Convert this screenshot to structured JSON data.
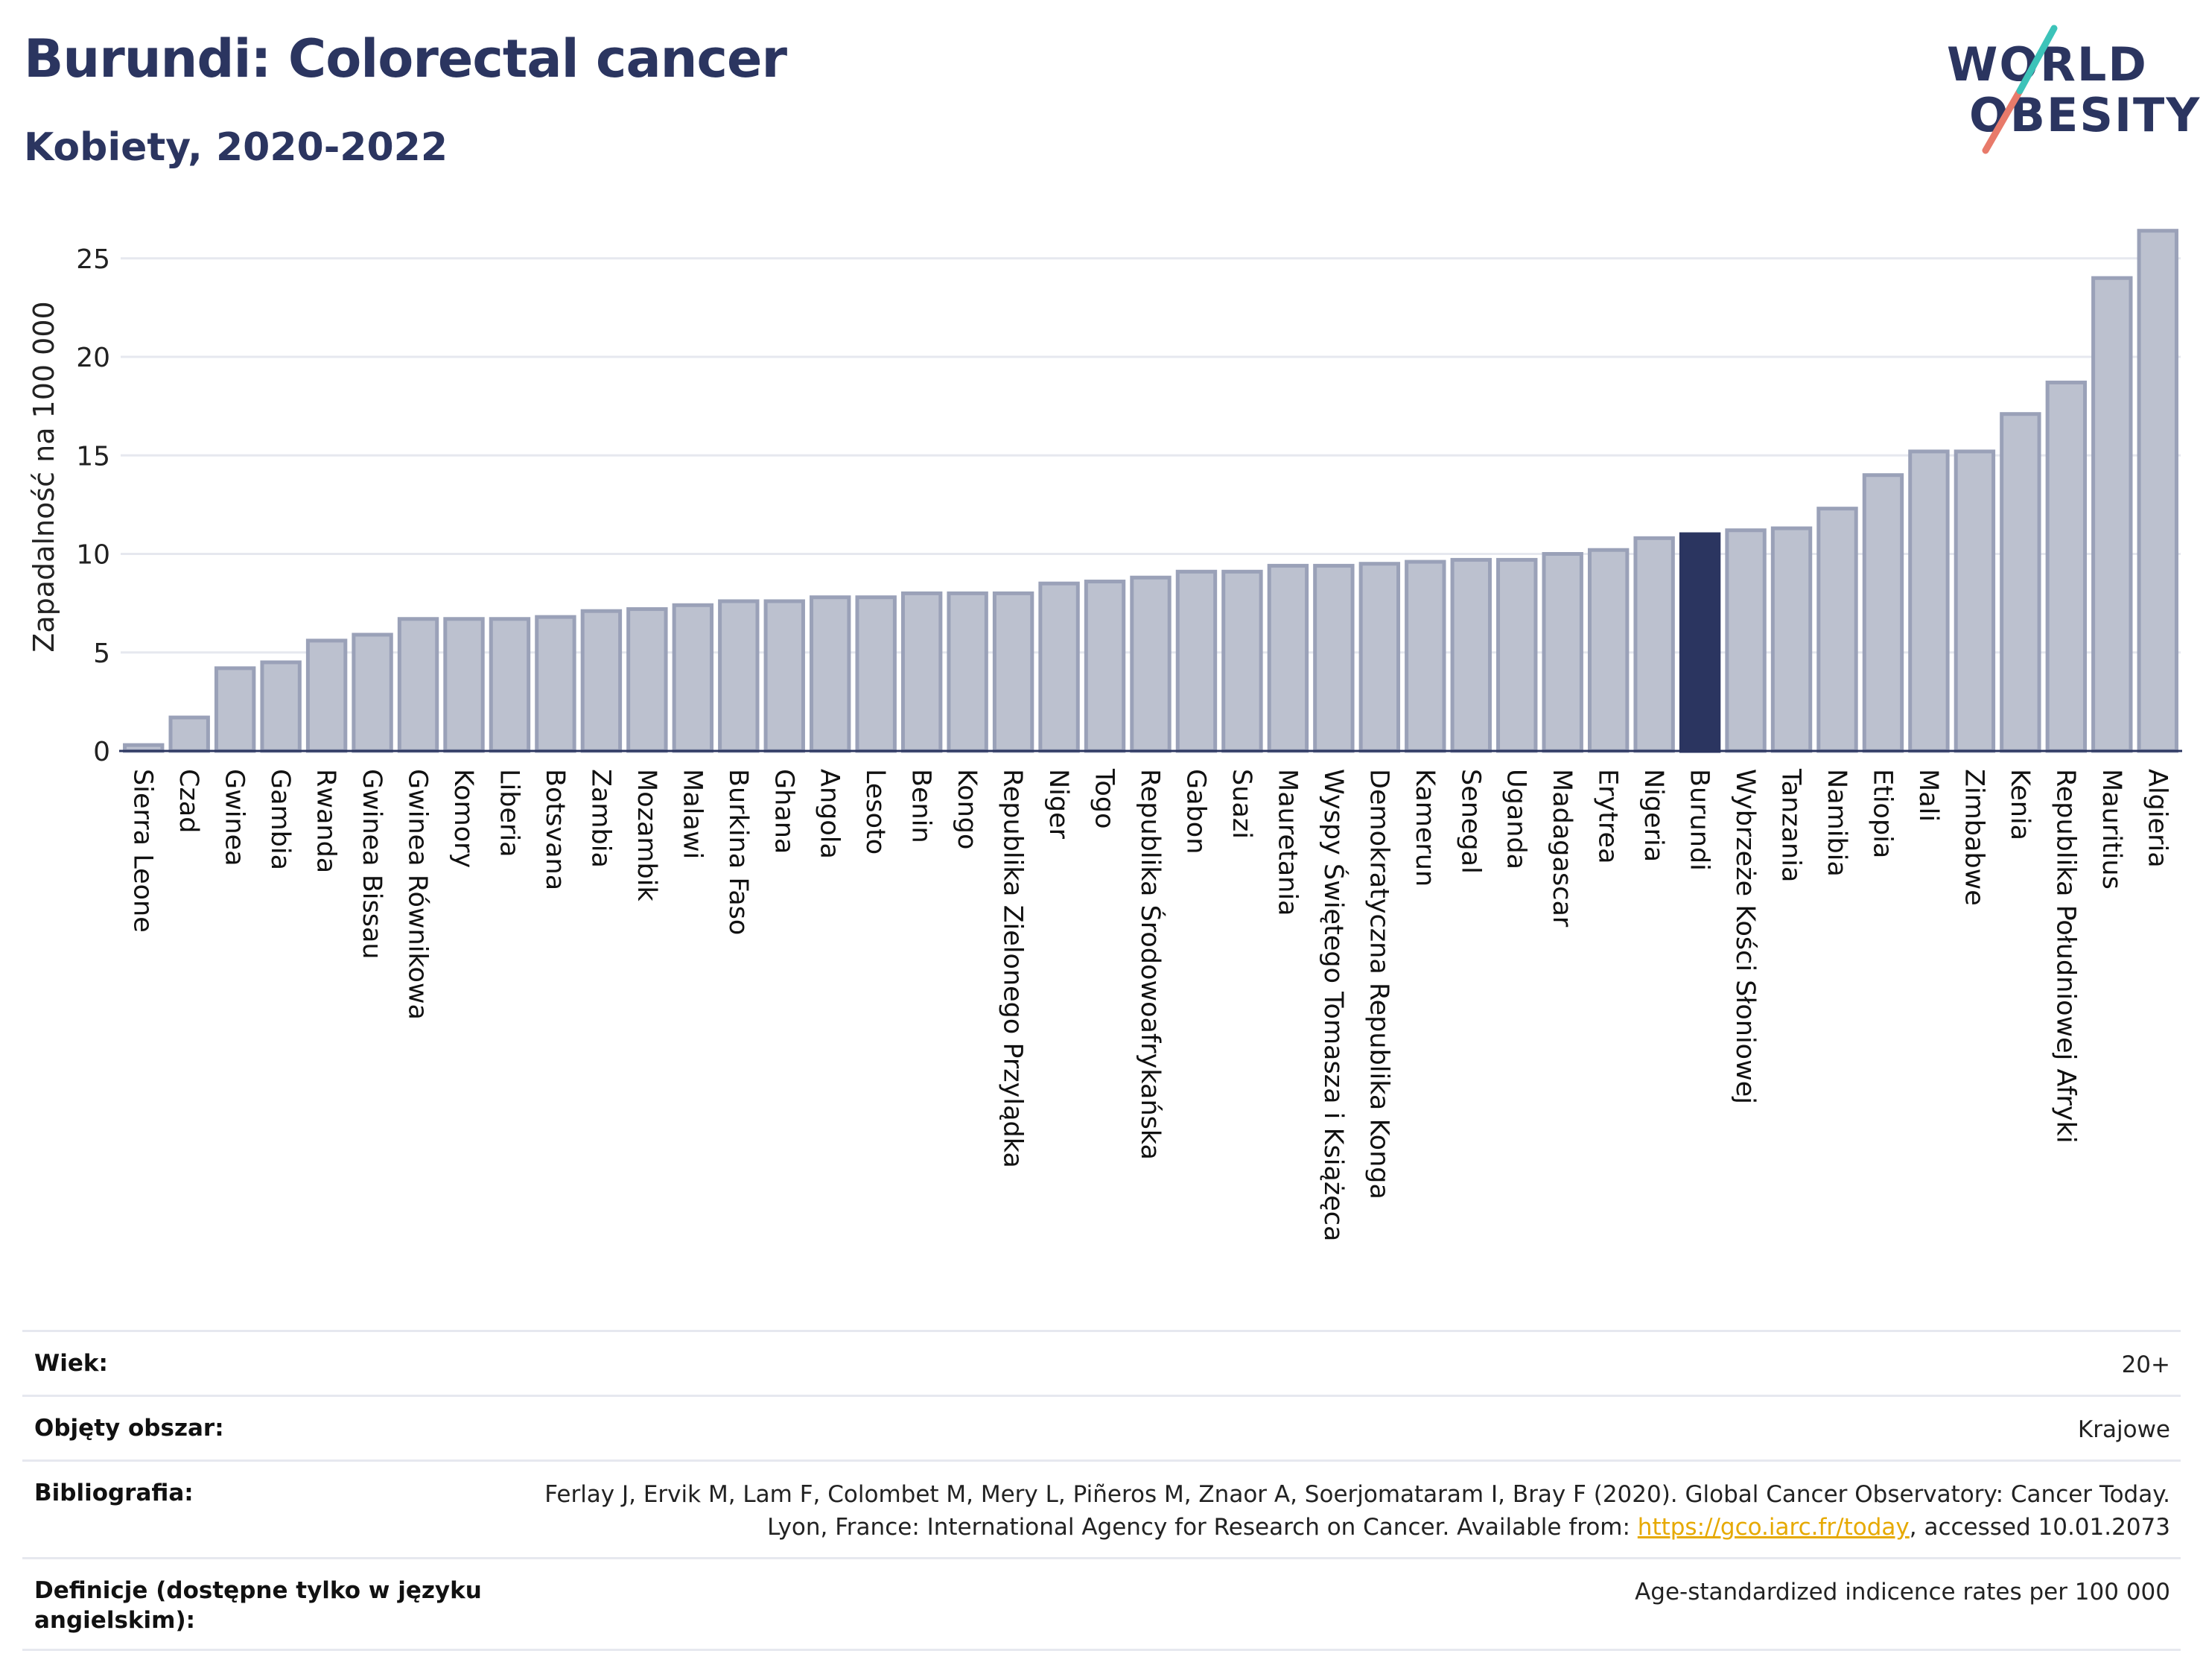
{
  "title": "Burundi: Colorectal cancer",
  "subtitle": "Kobiety, 2020-2022",
  "logo": {
    "line1": "WORLD",
    "line2": "OBESITY"
  },
  "colors": {
    "bar": "#bcc1cf",
    "bar_border": "#9aa1b8",
    "highlight": "#2b3560",
    "grid": "#e6e8ef",
    "text": "#2b3560",
    "link": "#e6a900"
  },
  "chart_data": {
    "type": "bar",
    "title": "Burundi: Colorectal cancer",
    "subtitle": "Kobiety, 2020-2022",
    "ylabel": "Zapadalność na 100 000",
    "xlabel": "",
    "ylim": [
      0,
      27
    ],
    "yticks": [
      0,
      5,
      10,
      15,
      20,
      25
    ],
    "grid": true,
    "highlight": "Burundi",
    "categories": [
      "Sierra Leone",
      "Czad",
      "Gwinea",
      "Gambia",
      "Rwanda",
      "Gwinea Bissau",
      "Gwinea Równikowa",
      "Komory",
      "Liberia",
      "Botsvana",
      "Zambia",
      "Mozambik",
      "Malawi",
      "Burkina Faso",
      "Ghana",
      "Angola",
      "Lesoto",
      "Benin",
      "Kongo",
      "Republika Zielonego Przylądka",
      "Niger",
      "Togo",
      "Republika Środowoafrykańska",
      "Gabon",
      "Suazi",
      "Mauretania",
      "Wyspy Świętego Tomasza i Książęca",
      "Demokratyczna Republika Konga",
      "Kamerun",
      "Senegal",
      "Uganda",
      "Madagascar",
      "Erytrea",
      "Nigeria",
      "Burundi",
      "Wybrzeże Kości Słoniowej",
      "Tanzania",
      "Namibia",
      "Etiopia",
      "Mali",
      "Zimbabwe",
      "Kenia",
      "Republika Południowej Afryki",
      "Mauritius",
      "Algieria"
    ],
    "values": [
      0.3,
      1.7,
      4.2,
      4.5,
      5.6,
      5.9,
      6.7,
      6.7,
      6.7,
      6.8,
      7.1,
      7.2,
      7.4,
      7.6,
      7.6,
      7.8,
      7.8,
      8.0,
      8.0,
      8.0,
      8.5,
      8.6,
      8.8,
      9.1,
      9.1,
      9.4,
      9.4,
      9.5,
      9.6,
      9.7,
      9.7,
      10.0,
      10.2,
      10.8,
      11.0,
      11.2,
      11.3,
      12.3,
      14.0,
      15.2,
      15.2,
      17.1,
      18.7,
      24.0,
      26.4
    ]
  },
  "info": {
    "age": {
      "label": "Wiek:",
      "value": "20+"
    },
    "area": {
      "label": "Objęty obszar:",
      "value": "Krajowe"
    },
    "bibliography": {
      "label": "Bibliografia:",
      "text1": "Ferlay J, Ervik M, Lam F, Colombet M, Mery L, Piñeros M, Znaor A, Soerjomataram I, Bray F (2020). Global Cancer Observatory: Cancer Today. Lyon, France: International Agency for Research on Cancer. Available from: ",
      "link": "https://gco.iarc.fr/today",
      "text2": ", accessed 10.01.2073"
    },
    "definitions": {
      "label": "Definicje (dostępne tylko w języku angielskim):",
      "value": "Age-standardized indicence rates per 100 000"
    }
  }
}
